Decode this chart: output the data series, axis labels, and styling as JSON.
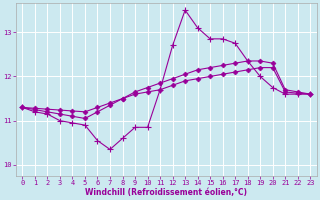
{
  "xlabel": "Windchill (Refroidissement éolien,°C)",
  "bg_color": "#cce9f0",
  "line_color": "#990099",
  "grid_color": "#ffffff",
  "xlim": [
    -0.5,
    23.5
  ],
  "ylim": [
    9.75,
    13.65
  ],
  "yticks": [
    10,
    11,
    12,
    13
  ],
  "xticks": [
    0,
    1,
    2,
    3,
    4,
    5,
    6,
    7,
    8,
    9,
    10,
    11,
    12,
    13,
    14,
    15,
    16,
    17,
    18,
    19,
    20,
    21,
    22,
    23
  ],
  "series1_x": [
    0,
    1,
    2,
    3,
    4,
    5,
    6,
    7,
    8,
    9,
    10,
    11,
    12,
    13,
    14,
    15,
    16,
    17,
    18,
    19,
    20,
    21,
    22,
    23
  ],
  "series1_y": [
    11.3,
    11.2,
    11.15,
    11.0,
    10.95,
    10.9,
    10.55,
    10.35,
    10.6,
    10.85,
    10.85,
    11.7,
    12.7,
    13.5,
    13.1,
    12.85,
    12.85,
    12.75,
    12.35,
    12.0,
    11.75,
    11.6,
    11.6,
    11.6
  ],
  "series2_x": [
    0,
    1,
    2,
    3,
    4,
    5,
    6,
    7,
    8,
    9,
    10,
    11,
    12,
    13,
    14,
    15,
    16,
    17,
    18,
    19,
    20,
    21,
    22,
    23
  ],
  "series2_y": [
    11.3,
    11.25,
    11.2,
    11.15,
    11.1,
    11.05,
    11.2,
    11.35,
    11.5,
    11.65,
    11.75,
    11.85,
    11.95,
    12.05,
    12.15,
    12.2,
    12.25,
    12.3,
    12.35,
    12.35,
    12.3,
    11.7,
    11.65,
    11.6
  ],
  "series3_x": [
    0,
    1,
    2,
    3,
    4,
    5,
    6,
    7,
    8,
    9,
    10,
    11,
    12,
    13,
    14,
    15,
    16,
    17,
    18,
    19,
    20,
    21,
    22,
    23
  ],
  "series3_y": [
    11.3,
    11.28,
    11.26,
    11.24,
    11.22,
    11.2,
    11.3,
    11.4,
    11.5,
    11.6,
    11.65,
    11.7,
    11.8,
    11.9,
    11.95,
    12.0,
    12.05,
    12.1,
    12.15,
    12.2,
    12.2,
    11.65,
    11.62,
    11.6
  ]
}
